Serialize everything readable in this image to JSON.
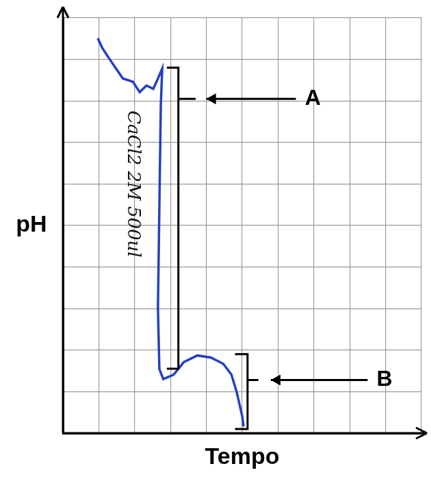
{
  "chart_data": {
    "type": "line",
    "x_label": "Tempo",
    "y_label": "pH",
    "annotations": [
      "CaCl2 2M 500ul",
      "A",
      "B"
    ],
    "x": [
      9.7,
      11.0,
      12.9,
      14.8,
      16.7,
      19.5,
      21.4,
      23.3,
      25.2,
      26.5,
      27.7,
      27.3,
      26.9,
      26.5,
      26.9,
      28.0,
      30.9,
      33.7,
      37.5,
      41.3,
      44.7,
      47.0,
      48.5,
      50.0,
      50.4
    ],
    "values": [
      95.1,
      92.7,
      90.2,
      87.8,
      85.4,
      84.6,
      82.1,
      83.7,
      82.9,
      85.4,
      87.8,
      78.9,
      54.5,
      30.1,
      15.4,
      13.0,
      14.1,
      17.1,
      18.7,
      18.2,
      16.7,
      14.1,
      9.8,
      4.1,
      1.6
    ],
    "color": "#2440c4",
    "xlim": [
      0,
      100
    ],
    "ylim": [
      0,
      100
    ],
    "xticks": [
      0,
      10,
      20,
      30,
      40,
      50,
      60,
      70,
      80,
      90,
      100
    ],
    "yticks": [
      0,
      10,
      20,
      30,
      40,
      50,
      60,
      70,
      80,
      90,
      100
    ],
    "grid": true,
    "tick_labels": false
  }
}
